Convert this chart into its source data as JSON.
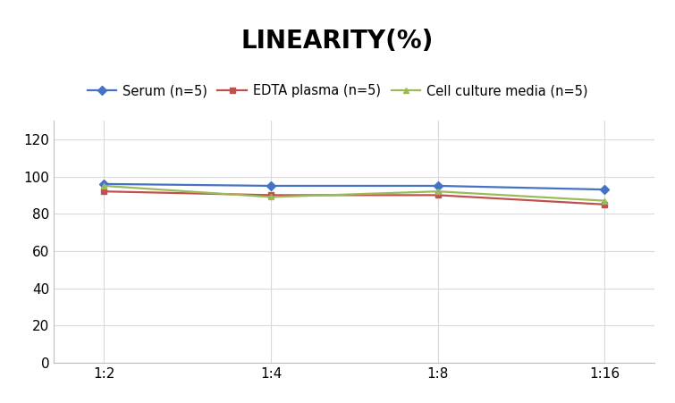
{
  "title": "LINEARITY(%)",
  "title_fontsize": 20,
  "title_fontweight": "bold",
  "x_labels": [
    "1:2",
    "1:4",
    "1:8",
    "1:16"
  ],
  "x_positions": [
    0,
    1,
    2,
    3
  ],
  "series": [
    {
      "label": "Serum (n=5)",
      "values": [
        96,
        95,
        95,
        93
      ],
      "color": "#4472C4",
      "marker": "D",
      "marker_size": 5,
      "linewidth": 1.6
    },
    {
      "label": "EDTA plasma (n=5)",
      "values": [
        92,
        90,
        90,
        85
      ],
      "color": "#C0504D",
      "marker": "s",
      "marker_size": 5,
      "linewidth": 1.6
    },
    {
      "label": "Cell culture media (n=5)",
      "values": [
        95,
        89,
        92,
        87
      ],
      "color": "#9BBB59",
      "marker": "^",
      "marker_size": 5,
      "linewidth": 1.6
    }
  ],
  "ylim": [
    0,
    130
  ],
  "yticks": [
    0,
    20,
    40,
    60,
    80,
    100,
    120
  ],
  "grid_color": "#D9D9D9",
  "background_color": "#FFFFFF",
  "legend_fontsize": 10.5,
  "tick_fontsize": 11,
  "spine_color": "#BFBFBF"
}
